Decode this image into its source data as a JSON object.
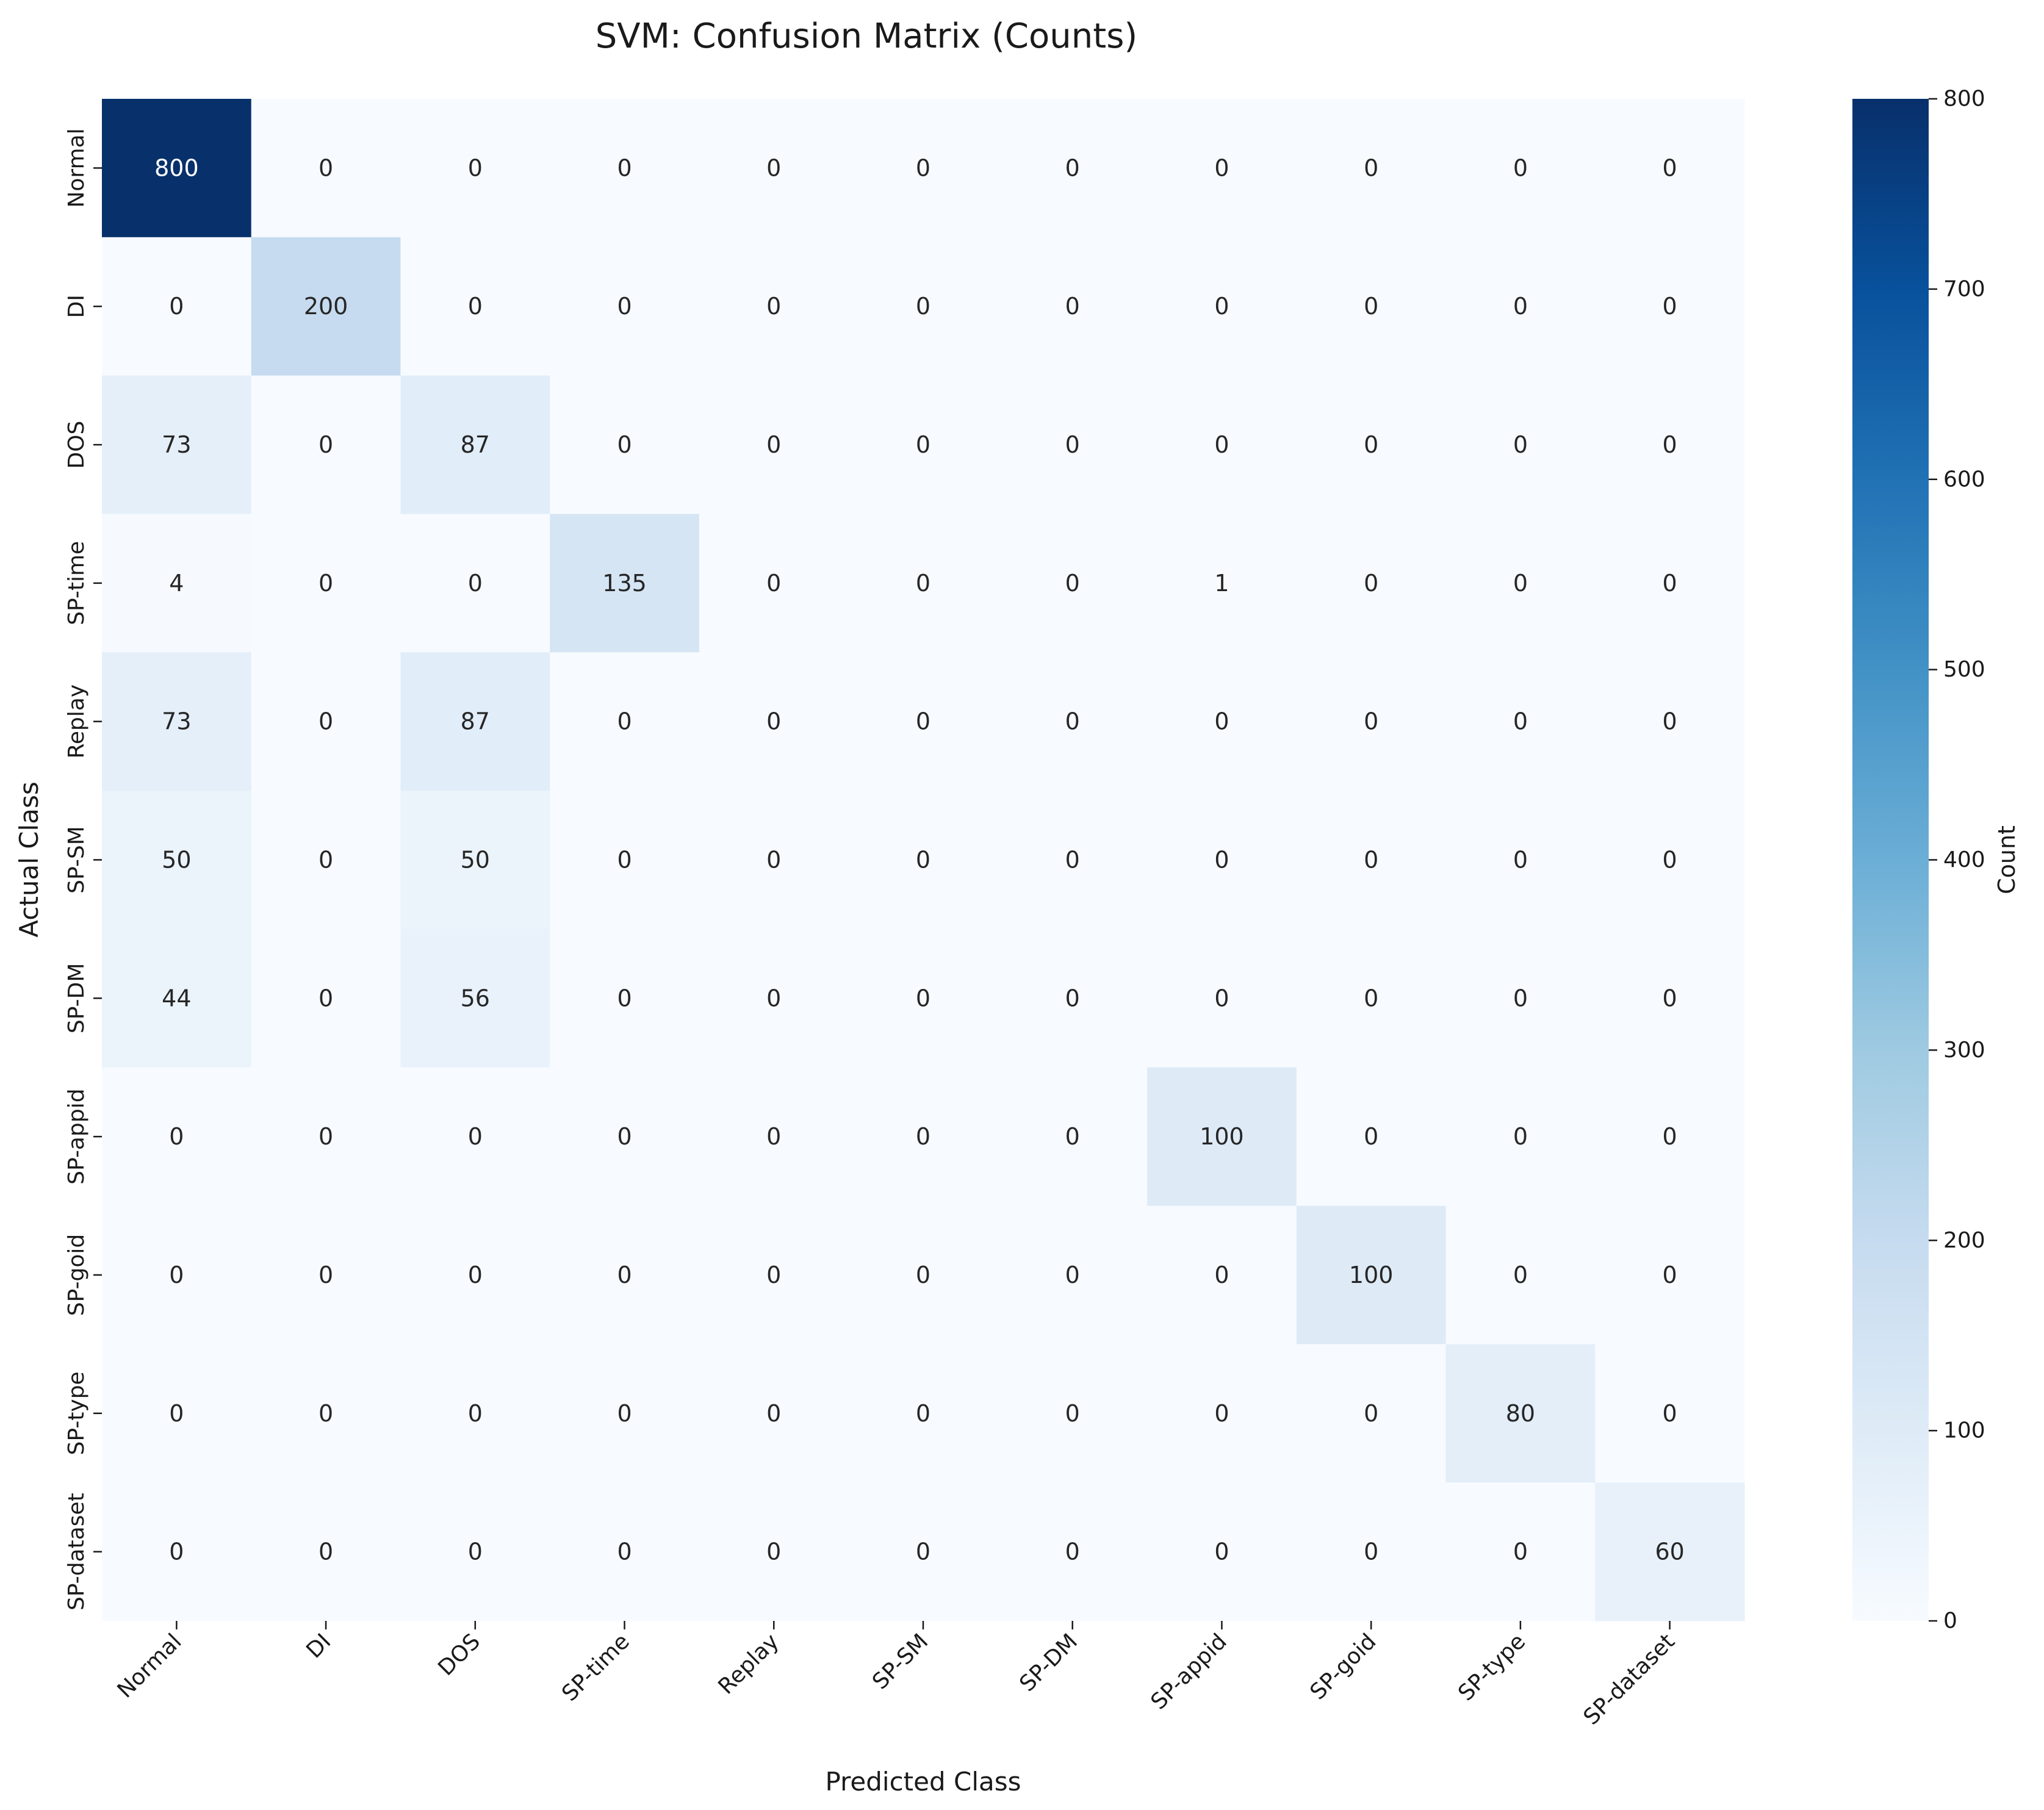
{
  "chart_data": {
    "type": "heatmap",
    "title": "SVM: Confusion Matrix (Counts)",
    "xlabel": "Predicted Class",
    "ylabel": "Actual Class",
    "x_categories": [
      "Normal",
      "DI",
      "DOS",
      "SP-time",
      "Replay",
      "SP-SM",
      "SP-DM",
      "SP-appid",
      "SP-goid",
      "SP-type",
      "SP-dataset"
    ],
    "y_categories": [
      "Normal",
      "DI",
      "DOS",
      "SP-time",
      "Replay",
      "SP-SM",
      "SP-DM",
      "SP-appid",
      "SP-goid",
      "SP-type",
      "SP-dataset"
    ],
    "matrix": [
      [
        800,
        0,
        0,
        0,
        0,
        0,
        0,
        0,
        0,
        0,
        0
      ],
      [
        0,
        200,
        0,
        0,
        0,
        0,
        0,
        0,
        0,
        0,
        0
      ],
      [
        73,
        0,
        87,
        0,
        0,
        0,
        0,
        0,
        0,
        0,
        0
      ],
      [
        4,
        0,
        0,
        135,
        0,
        0,
        0,
        1,
        0,
        0,
        0
      ],
      [
        73,
        0,
        87,
        0,
        0,
        0,
        0,
        0,
        0,
        0,
        0
      ],
      [
        50,
        0,
        50,
        0,
        0,
        0,
        0,
        0,
        0,
        0,
        0
      ],
      [
        44,
        0,
        56,
        0,
        0,
        0,
        0,
        0,
        0,
        0,
        0
      ],
      [
        0,
        0,
        0,
        0,
        0,
        0,
        0,
        100,
        0,
        0,
        0
      ],
      [
        0,
        0,
        0,
        0,
        0,
        0,
        0,
        0,
        100,
        0,
        0
      ],
      [
        0,
        0,
        0,
        0,
        0,
        0,
        0,
        0,
        0,
        80,
        0
      ],
      [
        0,
        0,
        0,
        0,
        0,
        0,
        0,
        0,
        0,
        0,
        60
      ]
    ],
    "colormap": "Blues",
    "vmin": 0,
    "vmax": 800,
    "colorbar": {
      "label": "Count",
      "ticks": [
        0,
        100,
        200,
        300,
        400,
        500,
        600,
        700,
        800
      ]
    },
    "colors": [
      "#f7fbff",
      "#deebf7",
      "#c6dbef",
      "#9ecae1",
      "#6baed6",
      "#4292c6",
      "#2171b5",
      "#08519c",
      "#08306b"
    ]
  }
}
